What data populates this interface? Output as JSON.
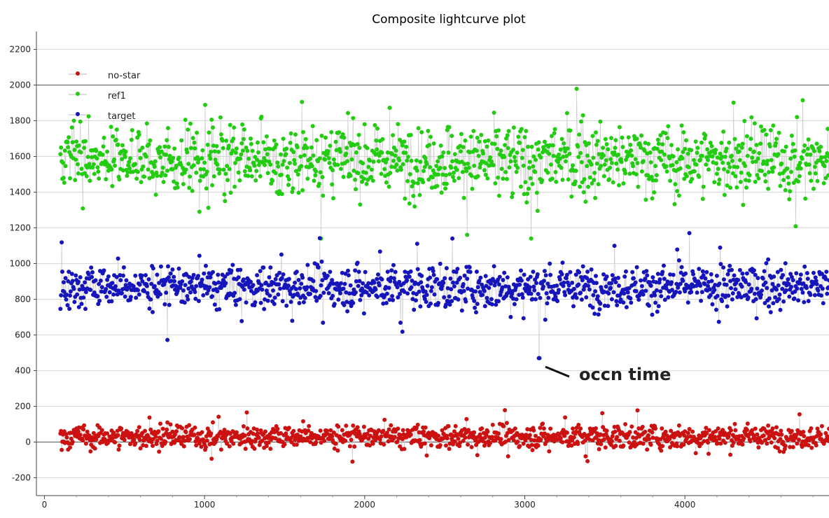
{
  "chart_data": {
    "type": "scatter",
    "title": "Composite lightcurve plot",
    "xlabel": "",
    "ylabel": "",
    "xlim": [
      -50,
      4900
    ],
    "ylim": [
      -300,
      2300
    ],
    "x_ticks": [
      0,
      1000,
      2000,
      3000,
      4000
    ],
    "y_ticks": [
      -200,
      0,
      200,
      400,
      600,
      800,
      1000,
      1200,
      1400,
      1600,
      1800,
      2000,
      2200
    ],
    "grid": "horizontal",
    "legend_position": "top-left",
    "x_range": [
      100,
      4900
    ],
    "series": [
      {
        "name": "no-star",
        "color": "#cc1111",
        "typical_value": 30,
        "spread": 60,
        "min_approx": -110,
        "max_approx": 240,
        "connected_by_line": true
      },
      {
        "name": "ref1",
        "color": "#22cc11",
        "typical_value": 1580,
        "spread": 180,
        "min_approx": 1140,
        "max_approx": 2170,
        "connected_by_line": true
      },
      {
        "name": "target",
        "color": "#1515bb",
        "typical_value": 870,
        "spread": 110,
        "min_approx": 470,
        "max_approx": 1260,
        "connected_by_line": true
      }
    ],
    "annotations": [
      {
        "text": "occn time",
        "points_to": {
          "series": "target",
          "x": 3090,
          "y": 470
        }
      }
    ]
  }
}
